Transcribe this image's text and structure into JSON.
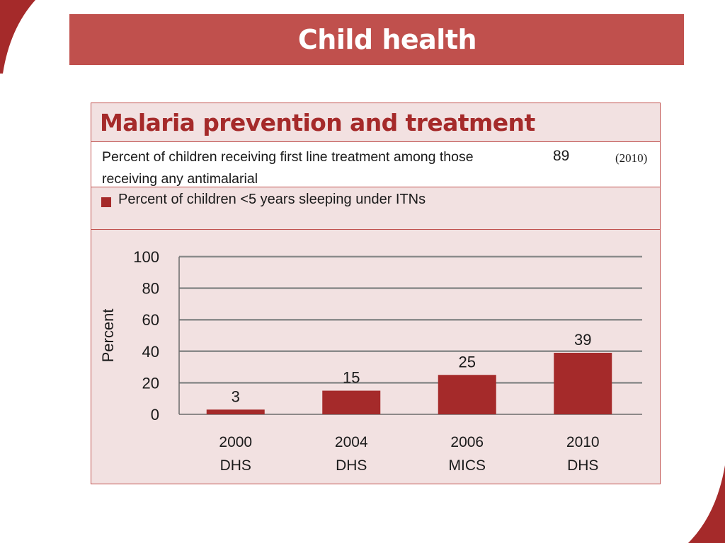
{
  "slide": {
    "title": "Child health"
  },
  "panel": {
    "heading": "Malaria prevention and treatment",
    "indicator": {
      "label": "Percent of children receiving first line treatment among those receiving any antimalarial",
      "value": "89",
      "year": "(2010)"
    },
    "legend": {
      "label": "Percent of children <5 years sleeping under ITNs"
    }
  },
  "colors": {
    "accent": "#c0504d",
    "bar": "#a52a2a",
    "panel_bg": "#f2e1e1",
    "grid": "#8c8c8c"
  },
  "chart_data": {
    "type": "bar",
    "categories": [
      [
        "2000",
        "DHS"
      ],
      [
        "2004",
        "DHS"
      ],
      [
        "2006",
        "MICS"
      ],
      [
        "2010",
        "DHS"
      ]
    ],
    "series": [
      {
        "name": "Percent of children <5 years sleeping under ITNs",
        "values": [
          3,
          15,
          25,
          39
        ]
      }
    ],
    "data_labels": [
      "3",
      "15",
      "25",
      "39"
    ],
    "ylabel": "Percent",
    "yticks": [
      0,
      20,
      40,
      60,
      80,
      100
    ],
    "ylim": [
      0,
      100
    ],
    "grid": true
  }
}
